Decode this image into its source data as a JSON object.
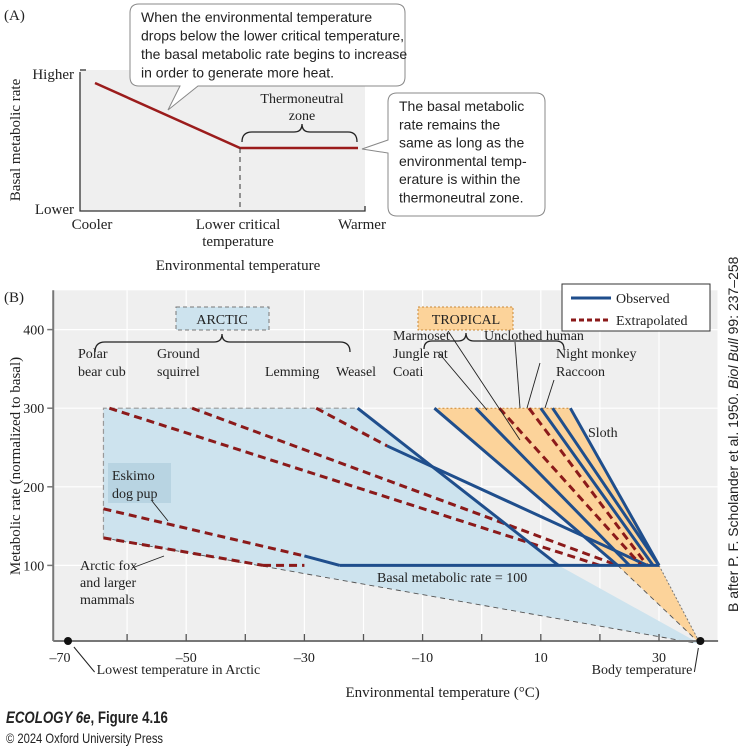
{
  "panel_a": {
    "label": "(A)",
    "ylabel": "Basal metabolic rate",
    "y_high": "Higher",
    "y_low": "Lower",
    "x_cooler": "Cooler",
    "x_lct_1": "Lower critical",
    "x_lct_2": "temperature",
    "x_warmer": "Warmer",
    "xlabel": "Environmental temperature",
    "tnz_1": "Thermoneutral",
    "tnz_2": "zone",
    "callout_left": [
      "When the environmental temperature",
      "drops below the lower critical temperature,",
      "the basal metabolic rate begins to increase",
      "in order to generate more heat."
    ],
    "callout_right": [
      "The basal metabolic",
      "rate remains the",
      "same as long as the",
      "environmental temp-",
      "erature is within the",
      "thermoneutral zone."
    ]
  },
  "chart_data": [
    {
      "type": "line",
      "title": "(A)",
      "xlabel": "Environmental temperature",
      "ylabel": "Basal metabolic rate",
      "x_ticks": [
        "Cooler",
        "Lower critical temperature",
        "Warmer"
      ],
      "y_ticks": [
        "Lower",
        "Higher"
      ],
      "series": [
        {
          "name": "Basal metabolic rate",
          "points": [
            [
              0.05,
              0.83
            ],
            [
              0.57,
              0.4
            ],
            [
              0.96,
              0.4
            ]
          ]
        }
      ],
      "annotations": [
        "Thermoneutral zone"
      ]
    },
    {
      "type": "line",
      "title": "(B)",
      "xlabel": "Environmental temperature (°C)",
      "ylabel": "Metabolic rate (normalized to basal)",
      "xlim": [
        -72,
        40
      ],
      "ylim": [
        0,
        450
      ],
      "x_ticks": [
        -70,
        -50,
        -30,
        -10,
        10,
        30
      ],
      "y_ticks": [
        100,
        200,
        300,
        400
      ],
      "grid": true,
      "legend": {
        "position": "top-right",
        "entries": [
          {
            "name": "Observed",
            "style": "solid",
            "color": "#1f4e8c"
          },
          {
            "name": "Extrapolated",
            "style": "dashed",
            "color": "#8b1a1a"
          }
        ]
      },
      "basal_line": {
        "value": 100,
        "label": "Basal metabolic rate = 100",
        "x_range": [
          -36,
          30
        ]
      },
      "body_temperature": {
        "x": 37,
        "label": "Body temperature"
      },
      "lowest_arctic": {
        "x": -70,
        "label": "Lowest temperature in Arctic"
      },
      "groups": [
        {
          "name": "ARCTIC",
          "color": "#cde3ee"
        },
        {
          "name": "TROPICAL",
          "color": "#fcd39a"
        }
      ],
      "series": [
        {
          "name": "Polar bear cub",
          "group": "ARCTIC",
          "segments": [
            {
              "style": "dashed",
              "from": [
                -63,
                300
              ],
              "to": [
                20,
                100
              ]
            }
          ]
        },
        {
          "name": "Ground squirrel",
          "group": "ARCTIC",
          "segments": [
            {
              "style": "dashed",
              "from": [
                -49,
                300
              ],
              "to": [
                23,
                100
              ]
            }
          ]
        },
        {
          "name": "Lemming",
          "group": "ARCTIC",
          "segments": [
            {
              "style": "dashed",
              "from": [
                -28,
                300
              ],
              "to": [
                -16,
                252
              ]
            },
            {
              "style": "solid",
              "from": [
                -16,
                252
              ],
              "to": [
                28,
                100
              ]
            }
          ]
        },
        {
          "name": "Weasel",
          "group": "ARCTIC",
          "segments": [
            {
              "style": "solid",
              "from": [
                -21,
                300
              ],
              "to": [
                13,
                100
              ]
            }
          ]
        },
        {
          "name": "Eskimo dog pup",
          "group": "ARCTIC",
          "segments": [
            {
              "style": "dashed",
              "from": [
                -64,
                172
              ],
              "to": [
                -30,
                112
              ]
            },
            {
              "style": "solid",
              "from": [
                -30,
                112
              ],
              "to": [
                -24,
                100
              ]
            }
          ]
        },
        {
          "name": "Arctic fox and larger mammals",
          "group": "ARCTIC",
          "segments": [
            {
              "style": "dashed",
              "from": [
                -64,
                135
              ],
              "to": [
                -37,
                100
              ]
            },
            {
              "style": "dashed",
              "from": [
                -37,
                100
              ],
              "to": [
                -30,
                100
              ]
            }
          ]
        },
        {
          "name": "Coati",
          "group": "TROPICAL",
          "segments": [
            {
              "style": "solid",
              "from": [
                -8,
                300
              ],
              "to": [
                23,
                100
              ]
            }
          ]
        },
        {
          "name": "Jungle rat",
          "group": "TROPICAL",
          "segments": [
            {
              "style": "solid",
              "from": [
                -1,
                300
              ],
              "to": [
                25,
                100
              ]
            }
          ]
        },
        {
          "name": "Marmoset",
          "group": "TROPICAL",
          "segments": [
            {
              "style": "dashed",
              "from": [
                3,
                300
              ],
              "to": [
                27,
                100
              ]
            }
          ]
        },
        {
          "name": "Unclothed human",
          "group": "TROPICAL",
          "segments": [
            {
              "style": "dashed",
              "from": [
                8,
                300
              ],
              "to": [
                28,
                100
              ]
            }
          ]
        },
        {
          "name": "Night monkey",
          "group": "TROPICAL",
          "segments": [
            {
              "style": "solid",
              "from": [
                10,
                300
              ],
              "to": [
                29,
                100
              ]
            }
          ]
        },
        {
          "name": "Raccoon",
          "group": "TROPICAL",
          "segments": [
            {
              "style": "solid",
              "from": [
                12,
                300
              ],
              "to": [
                30,
                100
              ]
            }
          ]
        },
        {
          "name": "Sloth",
          "group": "TROPICAL",
          "segments": [
            {
              "style": "solid",
              "from": [
                15,
                300
              ],
              "to": [
                30,
                100
              ]
            }
          ]
        }
      ],
      "annotations": [
        "ARCTIC",
        "TROPICAL",
        "Basal metabolic rate = 100"
      ]
    }
  ],
  "panel_b": {
    "label": "(B)",
    "source": "B after P. F. Scholander et al. 1950. ",
    "source_journal": "Biol Bull",
    "source_tail": " 99: 237–258"
  },
  "credit": {
    "title_italic": "ECOLOGY 6e",
    "title_rest": ", Figure 4.16",
    "copyright": "© 2024 Oxford University Press"
  }
}
